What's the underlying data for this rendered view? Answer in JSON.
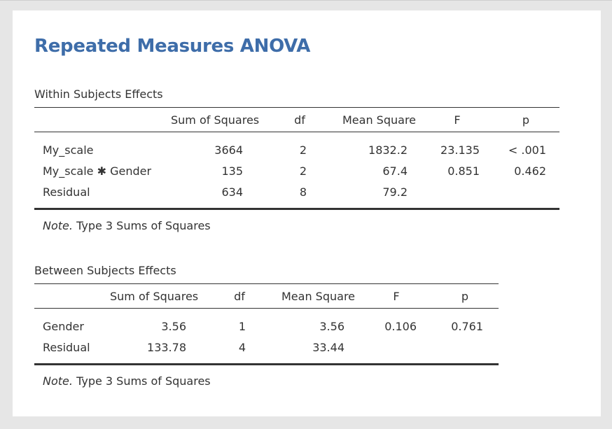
{
  "title": "Repeated Measures ANOVA",
  "within": {
    "caption": "Within Subjects Effects",
    "headers": [
      "Sum of Squares",
      "df",
      "Mean Square",
      "F",
      "p"
    ],
    "rows": [
      {
        "label": "My_scale",
        "ss": "3664",
        "df": "2",
        "ms": "1832.2",
        "f": "23.135",
        "p": "< .001"
      },
      {
        "label": "My_scale ✱ Gender",
        "ss": "135",
        "df": "2",
        "ms": "67.4",
        "f": "0.851",
        "p": "0.462"
      },
      {
        "label": "Residual",
        "ss": "634",
        "df": "8",
        "ms": "79.2",
        "f": "",
        "p": ""
      }
    ],
    "note_label": "Note.",
    "note_text": "Type 3 Sums of Squares"
  },
  "between": {
    "caption": "Between Subjects Effects",
    "headers": [
      "Sum of Squares",
      "df",
      "Mean Square",
      "F",
      "p"
    ],
    "rows": [
      {
        "label": "Gender",
        "ss": "3.56",
        "df": "1",
        "ms": "3.56",
        "f": "0.106",
        "p": "0.761"
      },
      {
        "label": "Residual",
        "ss": "133.78",
        "df": "4",
        "ms": "33.44",
        "f": "",
        "p": ""
      }
    ],
    "note_label": "Note.",
    "note_text": "Type 3 Sums of Squares"
  }
}
